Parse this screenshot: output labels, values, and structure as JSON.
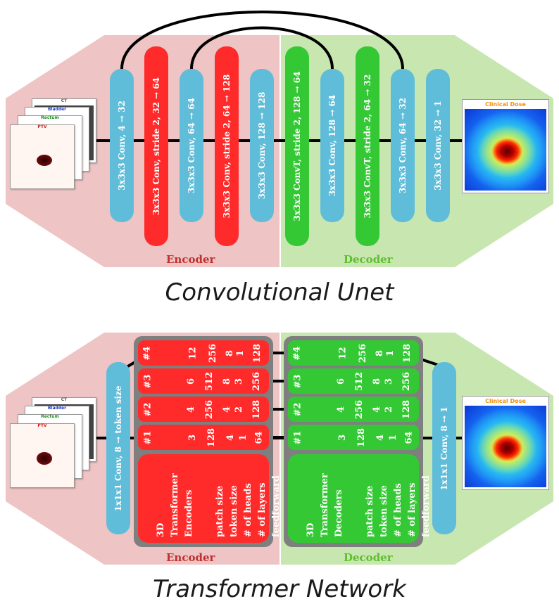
{
  "colors": {
    "encoder_bg": "#eec4c4",
    "decoder_bg": "#c8e6b0",
    "red_block": "#ff2b2b",
    "green_block": "#34c834",
    "blue_block": "#5fbdd9",
    "gray_frame": "#7f7f7f"
  },
  "unet": {
    "title": "Convolutional Unet",
    "encoder_label": "Encoder",
    "decoder_label": "Decoder",
    "input_stack": {
      "ct": "CT",
      "bladder": "Bladder",
      "rectum": "Rectum",
      "ptv": "PTV"
    },
    "output_label": "Clinical Dose",
    "blocks": [
      {
        "label": "3x3x3 Conv, 4 → 32",
        "color": "blue"
      },
      {
        "label": "3x3x3 Conv, stride 2, 32 → 64",
        "color": "red"
      },
      {
        "label": "3x3x3 Conv, 64 → 64",
        "color": "blue"
      },
      {
        "label": "3x3x3 Conv, stride 2, 64 → 128",
        "color": "red"
      },
      {
        "label": "3x3x3 Conv, 128 → 128",
        "color": "blue"
      },
      {
        "label": "3x3x3 ConvT, stride 2, 128 → 64",
        "color": "green"
      },
      {
        "label": "3x3x3 Conv, 128 → 64",
        "color": "blue"
      },
      {
        "label": "3x3x3 ConvT, stride 2, 64 → 32",
        "color": "green"
      },
      {
        "label": "3x3x3 Conv, 64 → 32",
        "color": "blue"
      },
      {
        "label": "3x3x3 Conv, 32 → 1",
        "color": "blue"
      }
    ]
  },
  "transformer": {
    "title": "Transformer Network",
    "encoder_label": "Encoder",
    "decoder_label": "Decoder",
    "input_stack": {
      "ct": "CT",
      "bladder": "Bladder",
      "rectum": "Rectum",
      "ptv": "PTV"
    },
    "output_label": "Clinical Dose",
    "in_conv": "1x1x1 Conv, 8 → token size",
    "out_conv": "1x1x1 Conv, 8 → 1",
    "encoder_legend": [
      "3D",
      "Transformer",
      "Encoders"
    ],
    "decoder_legend": [
      "3D",
      "Transformer",
      "Decoders"
    ],
    "legend_fields": [
      "patch size",
      "token size",
      "# of heads",
      "# of layers",
      "feedforward"
    ],
    "encoder_rows": [
      {
        "id": "#4",
        "vals": [
          "12",
          "256",
          "8",
          "1",
          "128"
        ]
      },
      {
        "id": "#3",
        "vals": [
          "6",
          "512",
          "8",
          "3",
          "256"
        ]
      },
      {
        "id": "#2",
        "vals": [
          "4",
          "256",
          "4",
          "2",
          "128"
        ]
      },
      {
        "id": "#1",
        "vals": [
          "3",
          "128",
          "4",
          "1",
          "64"
        ]
      }
    ],
    "decoder_rows": [
      {
        "id": "#4",
        "vals": [
          "12",
          "256",
          "8",
          "1",
          "128"
        ]
      },
      {
        "id": "#3",
        "vals": [
          "6",
          "512",
          "8",
          "3",
          "256"
        ]
      },
      {
        "id": "#2",
        "vals": [
          "4",
          "256",
          "4",
          "2",
          "128"
        ]
      },
      {
        "id": "#1",
        "vals": [
          "3",
          "128",
          "4",
          "1",
          "64"
        ]
      }
    ]
  }
}
